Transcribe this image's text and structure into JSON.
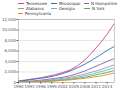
{
  "chart_data": {
    "type": "line",
    "x": [
      1990,
      1992,
      1994,
      1996,
      1998,
      2000,
      2002,
      2004,
      2006,
      2008,
      2010,
      2012,
      2014,
      2016
    ],
    "series": [
      {
        "name": "Tennessee",
        "color": "#d6468f",
        "values": [
          300,
          500,
          700,
          900,
          1200,
          1500,
          1900,
          2400,
          3200,
          4300,
          5800,
          7400,
          9200,
          11300
        ]
      },
      {
        "name": "Mississippi",
        "color": "#2f6fb5",
        "values": [
          200,
          400,
          600,
          800,
          1000,
          1300,
          1700,
          2200,
          2800,
          3500,
          4300,
          5200,
          6100,
          6900
        ]
      },
      {
        "name": "N Hampshire",
        "color": "#8e5bb0",
        "values": [
          100,
          200,
          300,
          450,
          600,
          800,
          1000,
          1300,
          1700,
          2200,
          2800,
          3400,
          4000,
          4600
        ]
      },
      {
        "name": "Alabama",
        "color": "#9a9a9a",
        "values": [
          100,
          150,
          250,
          350,
          450,
          600,
          800,
          1000,
          1300,
          1600,
          2000,
          2400,
          2900,
          3400
        ]
      },
      {
        "name": "Georgia",
        "color": "#5fb8e0",
        "values": [
          50,
          100,
          150,
          250,
          350,
          450,
          600,
          800,
          1000,
          1300,
          1600,
          2000,
          2400,
          2800
        ]
      },
      {
        "name": "N York",
        "color": "#4caf50",
        "values": [
          50,
          80,
          120,
          180,
          250,
          350,
          450,
          600,
          800,
          1000,
          1300,
          1600,
          1900,
          2300
        ]
      },
      {
        "name": "Pennsylvania",
        "color": "#f08a24",
        "values": [
          30,
          60,
          100,
          150,
          200,
          300,
          400,
          500,
          650,
          800,
          1000,
          1200,
          1500,
          1800
        ]
      }
    ],
    "xlim": [
      1990,
      2016
    ],
    "xticks": [
      1990,
      1993,
      1996,
      1999,
      2002,
      2005,
      2008,
      2011,
      2014
    ],
    "ylim": [
      0,
      12000
    ],
    "yticks": [
      0,
      {
        "value": 2000,
        "label": "2,000"
      },
      {
        "value": 4000,
        "label": "4,000"
      },
      {
        "value": 6000,
        "label": "6,000"
      },
      {
        "value": 8000,
        "label": "8,000"
      },
      {
        "value": 10000,
        "label": "10,000"
      },
      {
        "value": 12000,
        "label": "12,000"
      }
    ],
    "grid": true,
    "legend": "top"
  }
}
